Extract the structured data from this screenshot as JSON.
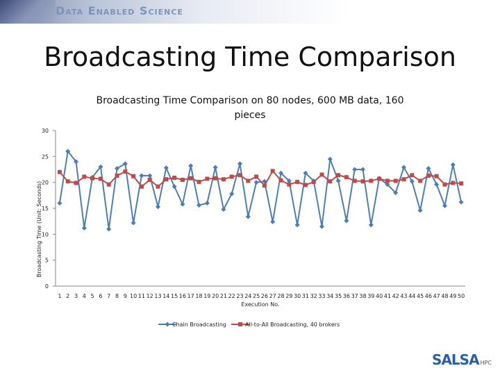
{
  "banner": {
    "title": "Data Enabled Science"
  },
  "slide": {
    "title": "Broadcasting Time Comparison"
  },
  "logo": {
    "text": "SALSA",
    "suffix": "HPC"
  },
  "chart_data": {
    "type": "line",
    "title": "Broadcasting Time Comparison on 80 nodes, 600 MB data, 160 pieces",
    "xlabel": "Execution No.",
    "ylabel": "Broadcasting Time (Unit: Seconds)",
    "ylim": [
      0,
      30
    ],
    "yticks": [
      0,
      5,
      10,
      15,
      20,
      25,
      30
    ],
    "grid": false,
    "legend_position": "bottom",
    "x": [
      1,
      2,
      3,
      4,
      5,
      6,
      7,
      8,
      9,
      10,
      11,
      12,
      13,
      14,
      15,
      16,
      17,
      18,
      19,
      20,
      21,
      22,
      23,
      24,
      25,
      26,
      27,
      28,
      29,
      30,
      31,
      32,
      33,
      34,
      35,
      36,
      37,
      38,
      39,
      40,
      41,
      42,
      43,
      44,
      45,
      46,
      47,
      48,
      49,
      50
    ],
    "series": [
      {
        "name": "Chain Broadcasting",
        "color": "#4a7ebb",
        "marker": "diamond",
        "values": [
          16,
          26,
          24,
          11.2,
          21,
          23,
          11,
          22.7,
          23.6,
          12.2,
          21.3,
          21.3,
          15.3,
          22.8,
          19.2,
          15.8,
          23.2,
          15.6,
          16,
          22.9,
          14.8,
          17.8,
          23.6,
          13.4,
          20,
          20.2,
          12.4,
          21.8,
          20.3,
          11.8,
          21.8,
          20.3,
          11.5,
          24.5,
          20.3,
          12.6,
          22.5,
          22.5,
          11.8,
          20.8,
          19.6,
          18,
          22.9,
          20.2,
          14.6,
          22.7,
          19.6,
          15.5,
          23.4,
          16.2
        ]
      },
      {
        "name": "All-to-All Broadcasting, 40 brokers",
        "color": "#be4b48",
        "marker": "square",
        "values": [
          22,
          20.2,
          19.9,
          21.1,
          20.8,
          20.7,
          19.6,
          21.3,
          22.1,
          21.2,
          19.2,
          20.5,
          19.2,
          20.6,
          20.9,
          20.5,
          20.8,
          20.1,
          20.7,
          20.8,
          20.6,
          21.1,
          21.4,
          20.3,
          21.1,
          19.4,
          22.2,
          20.4,
          19.6,
          20.1,
          19.5,
          20.1,
          21.5,
          20.2,
          21.4,
          21.0,
          20.3,
          20.2,
          20.3,
          20.7,
          20.3,
          20.3,
          20.6,
          21.4,
          20.3,
          21.3,
          21.2,
          19.6,
          19.9,
          19.8
        ]
      }
    ]
  }
}
